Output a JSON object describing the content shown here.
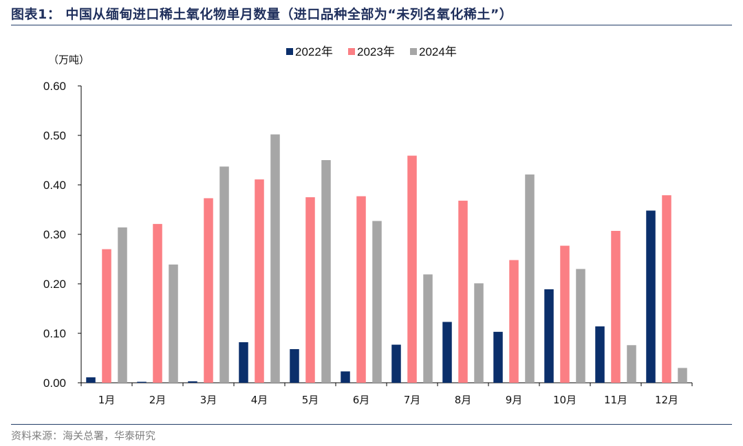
{
  "title": "图表1：  中国从缅甸进口稀土氧化物单月数量（进口品种全部为“未列名氧化稀土”）",
  "source": "资料来源：海关总署，华泰研究",
  "colors": {
    "s2022": "#0b2f6b",
    "s2023": "#fb7f84",
    "s2024": "#a6a6a6",
    "axis": "#000000",
    "rule": "#1f3a66"
  },
  "chart_data": {
    "type": "bar",
    "unit_label": "（万吨）",
    "categories": [
      "1月",
      "2月",
      "3月",
      "4月",
      "5月",
      "6月",
      "7月",
      "8月",
      "9月",
      "10月",
      "11月",
      "12月"
    ],
    "series": [
      {
        "name": "2022年",
        "values": [
          0.011,
          0.002,
          0.003,
          0.082,
          0.068,
          0.023,
          0.077,
          0.123,
          0.103,
          0.189,
          0.114,
          0.348
        ]
      },
      {
        "name": "2023年",
        "values": [
          0.27,
          0.321,
          0.373,
          0.411,
          0.375,
          0.377,
          0.459,
          0.368,
          0.248,
          0.277,
          0.307,
          0.379
        ]
      },
      {
        "name": "2024年",
        "values": [
          0.314,
          0.239,
          0.437,
          0.502,
          0.45,
          0.327,
          0.219,
          0.201,
          0.421,
          0.23,
          0.076,
          0.03
        ]
      }
    ],
    "ylim": [
      0,
      0.6
    ],
    "yticks": [
      "0.00",
      "0.10",
      "0.20",
      "0.30",
      "0.40",
      "0.50",
      "0.60"
    ],
    "legend_position": "top-center",
    "grid": false
  }
}
